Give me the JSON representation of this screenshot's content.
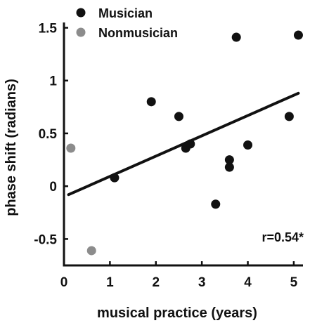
{
  "chart_data": {
    "type": "scatter",
    "title": "",
    "xlabel": "musical practice (years)",
    "ylabel": "phase shift (radians)",
    "xlim": [
      0,
      5.2
    ],
    "ylim": [
      -0.75,
      1.55
    ],
    "xticks": [
      0,
      1,
      2,
      3,
      4,
      5
    ],
    "yticks": [
      1.5,
      1,
      0.5,
      0,
      -0.5
    ],
    "ytick_labels": [
      "1.5",
      "1",
      "0.5",
      "0",
      "-0.5"
    ],
    "grid": false,
    "legend_position": "top-left",
    "series": [
      {
        "name": "Musician",
        "color": "#111111",
        "points": [
          {
            "x": 1.1,
            "y": 0.08
          },
          {
            "x": 1.9,
            "y": 0.8
          },
          {
            "x": 2.5,
            "y": 0.66
          },
          {
            "x": 2.65,
            "y": 0.36
          },
          {
            "x": 2.75,
            "y": 0.4
          },
          {
            "x": 3.3,
            "y": -0.17
          },
          {
            "x": 3.6,
            "y": 0.25
          },
          {
            "x": 3.6,
            "y": 0.18
          },
          {
            "x": 3.75,
            "y": 1.41
          },
          {
            "x": 4.0,
            "y": 0.39
          },
          {
            "x": 4.9,
            "y": 0.66
          },
          {
            "x": 5.1,
            "y": 1.43
          }
        ]
      },
      {
        "name": "Nonmusician",
        "color": "#8c8c8c",
        "points": [
          {
            "x": 0.15,
            "y": 0.36
          },
          {
            "x": 0.6,
            "y": -0.61
          }
        ]
      }
    ],
    "regression_line": {
      "x": [
        0.1,
        5.1
      ],
      "y": [
        -0.08,
        0.88
      ]
    },
    "annotation": "r=0.54*"
  }
}
